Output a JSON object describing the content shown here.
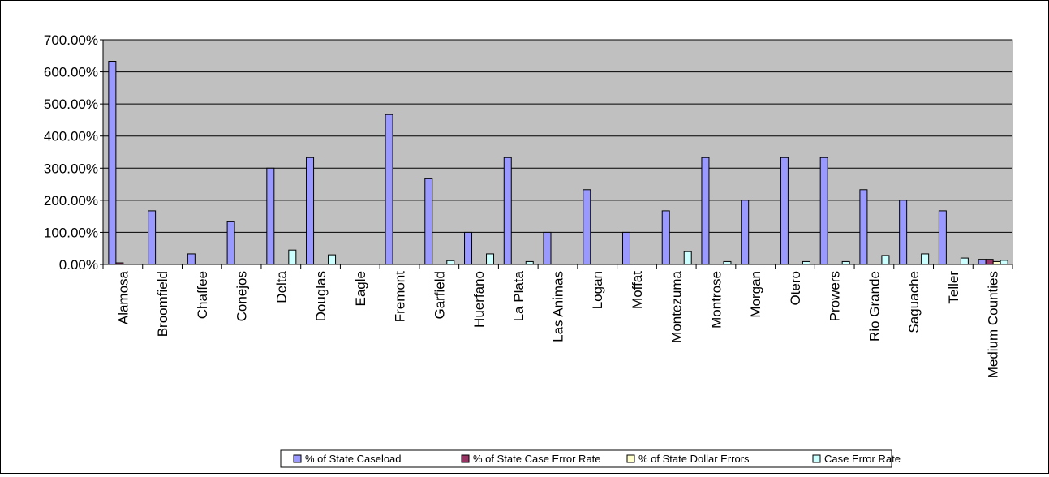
{
  "chart_data": {
    "type": "bar",
    "categories": [
      "Alamosa",
      "Broomfield",
      "Chaffee",
      "Conejos",
      "Delta",
      "Douglas",
      "Eagle",
      "Fremont",
      "Garfield",
      "Huerfano",
      "La Plata",
      "Las Animas",
      "Logan",
      "Moffat",
      "Montezuma",
      "Montrose",
      "Morgan",
      "Otero",
      "Prowers",
      "Rio Grande",
      "Saguache",
      "Teller",
      "Medium Counties"
    ],
    "yticks": [
      "0.00%",
      "100.00%",
      "200.00%",
      "300.00%",
      "400.00%",
      "500.00%",
      "600.00%",
      "700.00%"
    ],
    "ylim": [
      0,
      700
    ],
    "grid": true,
    "legend_position": "bottom",
    "series": [
      {
        "name": "% of State Caseload",
        "color": "#9999ff",
        "values": [
          633,
          167,
          33,
          133,
          300,
          333,
          0,
          467,
          267,
          100,
          333,
          100,
          233,
          100,
          167,
          333,
          200,
          333,
          333,
          233,
          200,
          167,
          16
        ]
      },
      {
        "name": "% of State Case Error Rate",
        "color": "#993366",
        "values": [
          5,
          0,
          0,
          0,
          0,
          0,
          0,
          0,
          0,
          0,
          0,
          0,
          0,
          0,
          0,
          0,
          0,
          0,
          0,
          0,
          0,
          0,
          16
        ]
      },
      {
        "name": "% of State Dollar Errors",
        "color": "#ffffcc",
        "values": [
          0,
          0,
          0,
          0,
          0,
          0,
          0,
          0,
          0,
          0,
          0,
          0,
          0,
          0,
          0,
          0,
          0,
          0,
          0,
          0,
          0,
          0,
          9
        ]
      },
      {
        "name": "Case Error Rate",
        "color": "#ccffff",
        "values": [
          0,
          0,
          0,
          0,
          45,
          30,
          0,
          0,
          12,
          33,
          9,
          0,
          0,
          0,
          40,
          9,
          0,
          9,
          9,
          28,
          33,
          20,
          13
        ]
      }
    ]
  }
}
